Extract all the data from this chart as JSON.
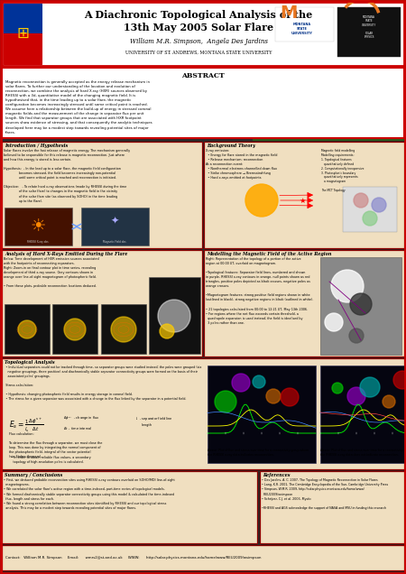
{
  "title_line1": "A Diachronic Topological Analysis of the",
  "title_line2": "13th May 2005 Solar Flare",
  "authors": "William M.R. Simpson,  Angela Des Jardins",
  "affiliation": "University of St. Andrews, Montana State University",
  "poster_bg": "#2a2a2a",
  "header_bg": "#ffffff",
  "red_border": "#cc0000",
  "dark_red_border": "#8b0000",
  "cream_bg": "#f0dfc0",
  "white": "#ffffff",
  "green_foliage": "#2d5a1b",
  "abstract_title": "Abstract",
  "intro_title": "Introduction / Hypothesis",
  "bg_title": "Background Theory",
  "hxr_title": "Analysis of Hard X-Rays Emitted During the Flare",
  "model_title": "Modelling the Magnetic Field of the Active Region",
  "topo_title": "Topological Analysis",
  "summary_title": "Summary / Conclusions",
  "refs_title": "References",
  "abstract_text": "Magnetic reconnection is generally accepted as the energy release mechanism in solar flares. To further our understanding of the location and evolution of reconnection, we combine the analysis of hard X-ray (HXR) sources observed by RHESSI with a 3d, quantitative model of the changing magnetic field. It is hypothesised that, in the time leading up to a solar flare, the magnetic configuration becomes increasingly stressed until some critical point is reached. We assume here a relationship between the build-up of energy in stressed coronal magnetic fields and the measurement of the change in separator flux per unit length. We find that separator groups that are associated with HXR footpoint sources show evidence of stressing, and that consequently the analytic techniques developed here may be a modest step towards revealing potential sites of major flares.",
  "contact_line": "Contact:   William M.R. Simpson     Email:      wmrs2@st-and.ac.uk     WWW:      http://solar.physics.montana.edu/home/www/REU2009/wsimpson"
}
